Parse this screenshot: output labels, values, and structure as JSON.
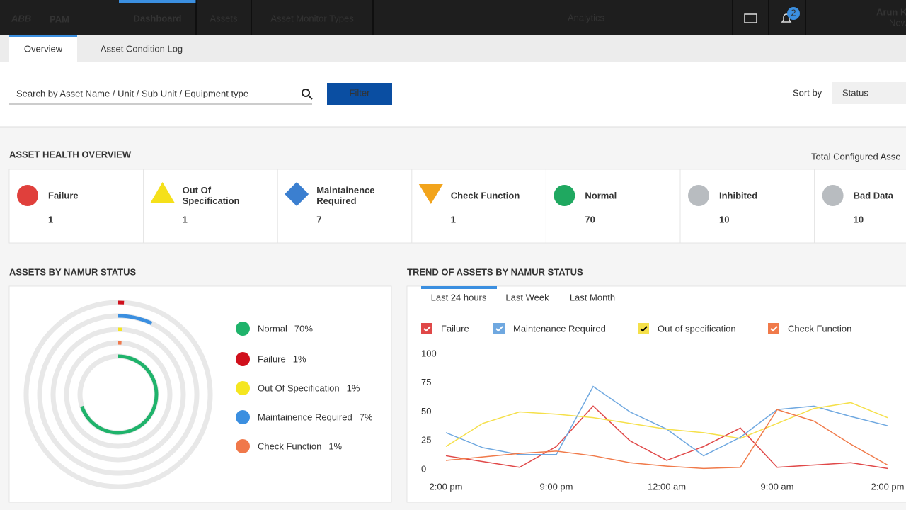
{
  "nav": {
    "logo": "ABB",
    "app": "PAM",
    "tabs": [
      "Dashboard",
      "Assets",
      "Asset Monitor Types"
    ],
    "center": "Analytics",
    "notifications": 2,
    "user": "Arun Ku",
    "user_sub": "New"
  },
  "subtabs": [
    "Overview",
    "Asset Condition Log"
  ],
  "search": {
    "placeholder": "Search by Asset Name / Unit / Sub Unit / Equipment type",
    "button": "Filter",
    "sort_label": "Sort by",
    "sort_value": "Status"
  },
  "health": {
    "title": "ASSET HEALTH OVERVIEW",
    "total_label": "Total Configured Asse",
    "cards": [
      {
        "label": [
          "Failure"
        ],
        "value": 1
      },
      {
        "label": [
          "Out Of",
          "Specification"
        ],
        "value": 1
      },
      {
        "label": [
          "Maintainence",
          "Required"
        ],
        "value": 7
      },
      {
        "label": [
          "Check Function"
        ],
        "value": 1
      },
      {
        "label": [
          "Normal"
        ],
        "value": 70
      },
      {
        "label": [
          "Inhibited"
        ],
        "value": 10
      },
      {
        "label": [
          "Bad Data"
        ],
        "value": 10
      }
    ]
  },
  "chart_data": [
    {
      "type": "ring",
      "title": "ASSETS BY NAMUR STATUS",
      "categories": [
        "Normal",
        "Failure",
        "Out Of Specification",
        "Maintainence Required",
        "Check Function"
      ],
      "values": [
        70,
        1,
        1,
        7,
        1
      ],
      "value_labels": [
        "70%",
        "1%",
        "1%",
        "7%",
        "1%"
      ],
      "colors": [
        "#1fb36b",
        "#d0101c",
        "#f5e620",
        "#3b8fe0",
        "#f0784a"
      ]
    },
    {
      "type": "line",
      "title": "TREND OF ASSETS BY NAMUR STATUS",
      "tabs": [
        "Last 24 hours",
        "Last Week",
        "Last Month"
      ],
      "categories": [
        "2:00 pm",
        null,
        null,
        "9:00 pm",
        null,
        null,
        "12:00 am",
        null,
        null,
        "9:00 am",
        null,
        null,
        "2:00 pm"
      ],
      "series": [
        {
          "name": "Failure",
          "color": "#e04848",
          "values": [
            12,
            7,
            2,
            20,
            55,
            25,
            8,
            20,
            36,
            2,
            4,
            6,
            1
          ]
        },
        {
          "name": "Maintenance Required",
          "color": "#6fa8e0",
          "values": [
            32,
            19,
            13,
            13,
            72,
            50,
            35,
            12,
            28,
            52,
            55,
            46,
            38
          ]
        },
        {
          "name": "Out of specification",
          "color": "#f5e04a",
          "values": [
            20,
            40,
            50,
            48,
            45,
            40,
            35,
            32,
            27,
            40,
            53,
            58,
            45
          ]
        },
        {
          "name": "Check Function",
          "color": "#f07a4a",
          "values": [
            8,
            11,
            14,
            16,
            12,
            6,
            3,
            1,
            2,
            52,
            42,
            22,
            4
          ]
        }
      ],
      "ylim": [
        0,
        100
      ],
      "yticks": [
        0,
        25,
        50,
        75,
        100
      ]
    }
  ]
}
